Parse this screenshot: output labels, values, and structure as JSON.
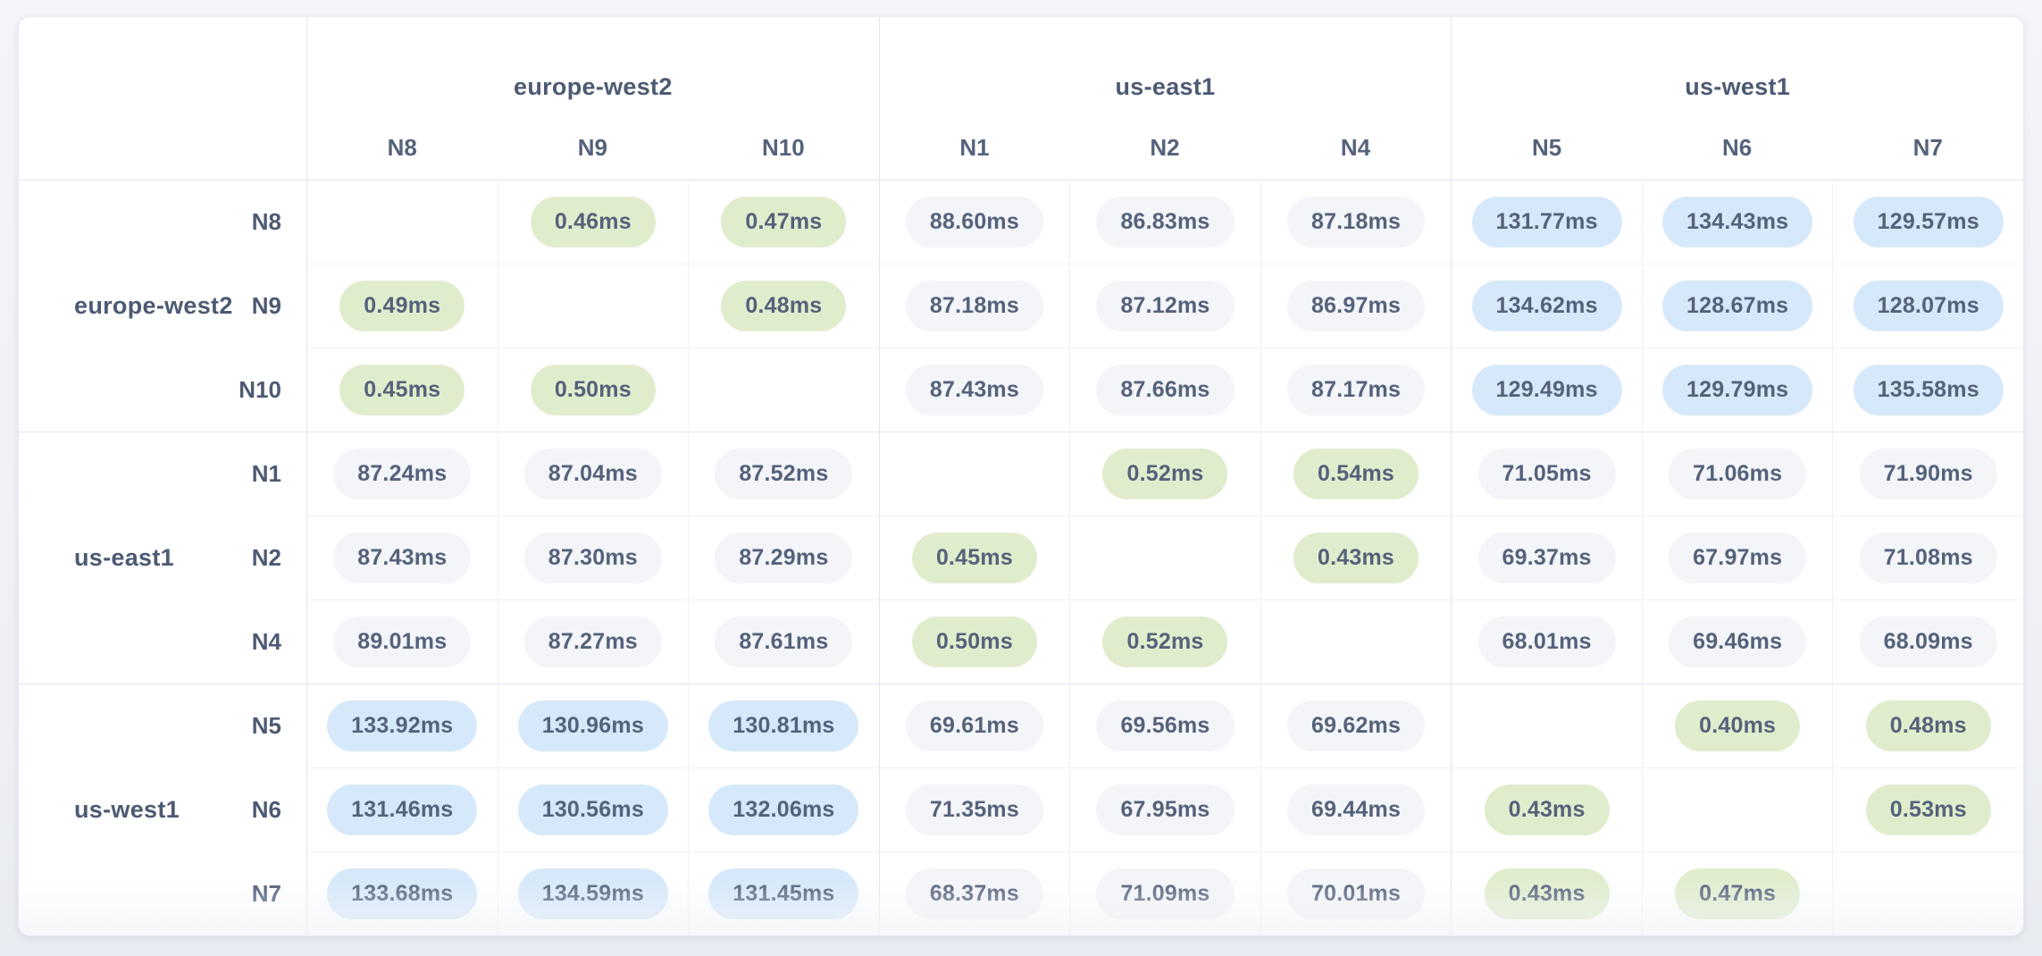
{
  "table": {
    "unit": "ms",
    "groups": [
      {
        "region": "europe-west2",
        "nodes": [
          "N8",
          "N9",
          "N10"
        ]
      },
      {
        "region": "us-east1",
        "nodes": [
          "N1",
          "N2",
          "N4"
        ]
      },
      {
        "region": "us-west1",
        "nodes": [
          "N5",
          "N6",
          "N7"
        ]
      }
    ],
    "matrix": [
      [
        null,
        "0.46ms",
        "0.47ms",
        "88.60ms",
        "86.83ms",
        "87.18ms",
        "131.77ms",
        "134.43ms",
        "129.57ms"
      ],
      [
        "0.49ms",
        null,
        "0.48ms",
        "87.18ms",
        "87.12ms",
        "86.97ms",
        "134.62ms",
        "128.67ms",
        "128.07ms"
      ],
      [
        "0.45ms",
        "0.50ms",
        null,
        "87.43ms",
        "87.66ms",
        "87.17ms",
        "129.49ms",
        "129.79ms",
        "135.58ms"
      ],
      [
        "87.24ms",
        "87.04ms",
        "87.52ms",
        null,
        "0.52ms",
        "0.54ms",
        "71.05ms",
        "71.06ms",
        "71.90ms"
      ],
      [
        "87.43ms",
        "87.30ms",
        "87.29ms",
        "0.45ms",
        null,
        "0.43ms",
        "69.37ms",
        "67.97ms",
        "71.08ms"
      ],
      [
        "89.01ms",
        "87.27ms",
        "87.61ms",
        "0.50ms",
        "0.52ms",
        null,
        "68.01ms",
        "69.46ms",
        "68.09ms"
      ],
      [
        "133.92ms",
        "130.96ms",
        "130.81ms",
        "69.61ms",
        "69.56ms",
        "69.62ms",
        null,
        "0.40ms",
        "0.48ms"
      ],
      [
        "131.46ms",
        "130.56ms",
        "132.06ms",
        "71.35ms",
        "67.95ms",
        "69.44ms",
        "0.43ms",
        null,
        "0.53ms"
      ],
      [
        "133.68ms",
        "134.59ms",
        "131.45ms",
        "68.37ms",
        "71.09ms",
        "70.01ms",
        "0.43ms",
        "0.47ms",
        null
      ]
    ],
    "tone_colors": {
      "low": "#e0edcd",
      "mid": "#f3f5f9",
      "high": "#d6e9fa"
    },
    "tone_thresholds": {
      "low_below": 1,
      "high_above": 100
    }
  },
  "chart_data": {
    "type": "heatmap",
    "title": "",
    "unit": "ms",
    "row_groups": [
      {
        "region": "europe-west2",
        "nodes": [
          "N8",
          "N9",
          "N10"
        ]
      },
      {
        "region": "us-east1",
        "nodes": [
          "N1",
          "N2",
          "N4"
        ]
      },
      {
        "region": "us-west1",
        "nodes": [
          "N5",
          "N6",
          "N7"
        ]
      }
    ],
    "rows": [
      "N8",
      "N9",
      "N10",
      "N1",
      "N2",
      "N4",
      "N5",
      "N6",
      "N7"
    ],
    "cols": [
      "N8",
      "N9",
      "N10",
      "N1",
      "N2",
      "N4",
      "N5",
      "N6",
      "N7"
    ],
    "values": [
      [
        null,
        0.46,
        0.47,
        88.6,
        86.83,
        87.18,
        131.77,
        134.43,
        129.57
      ],
      [
        0.49,
        null,
        0.48,
        87.18,
        87.12,
        86.97,
        134.62,
        128.67,
        128.07
      ],
      [
        0.45,
        0.5,
        null,
        87.43,
        87.66,
        87.17,
        129.49,
        129.79,
        135.58
      ],
      [
        87.24,
        87.04,
        87.52,
        null,
        0.52,
        0.54,
        71.05,
        71.06,
        71.9
      ],
      [
        87.43,
        87.3,
        87.29,
        0.45,
        null,
        0.43,
        69.37,
        67.97,
        71.08
      ],
      [
        89.01,
        87.27,
        87.61,
        0.5,
        0.52,
        null,
        68.01,
        69.46,
        68.09
      ],
      [
        133.92,
        130.96,
        130.81,
        69.61,
        69.56,
        69.62,
        null,
        0.4,
        0.48
      ],
      [
        131.46,
        130.56,
        132.06,
        71.35,
        67.95,
        69.44,
        0.43,
        null,
        0.53
      ],
      [
        133.68,
        134.59,
        131.45,
        68.37,
        71.09,
        70.01,
        0.43,
        0.47,
        null
      ]
    ],
    "legend": {
      "intra_region_color": "#e0edcd",
      "inter_region_color": "#f3f5f9",
      "cross_continent_color": "#d6e9fa"
    },
    "layout": {
      "grid": "on",
      "diagonal": "empty"
    }
  }
}
